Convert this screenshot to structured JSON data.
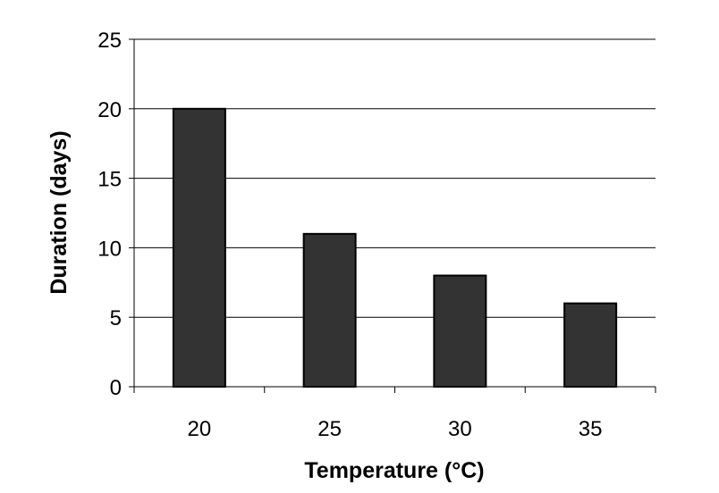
{
  "chart_data": {
    "type": "bar",
    "title": "",
    "xlabel": "Temperature (°C)",
    "ylabel": "Duration (days)",
    "categories": [
      "20",
      "25",
      "30",
      "35"
    ],
    "values": [
      20,
      11,
      8,
      6
    ],
    "ylim": [
      0,
      25
    ],
    "yticks": [
      "0",
      "5",
      "10",
      "15",
      "20",
      "25"
    ],
    "grid": true,
    "legend": "none",
    "colors": {
      "bar_fill": "#333333",
      "bar_stroke": "#000000",
      "grid": "#000000",
      "axis": "#000000"
    }
  }
}
